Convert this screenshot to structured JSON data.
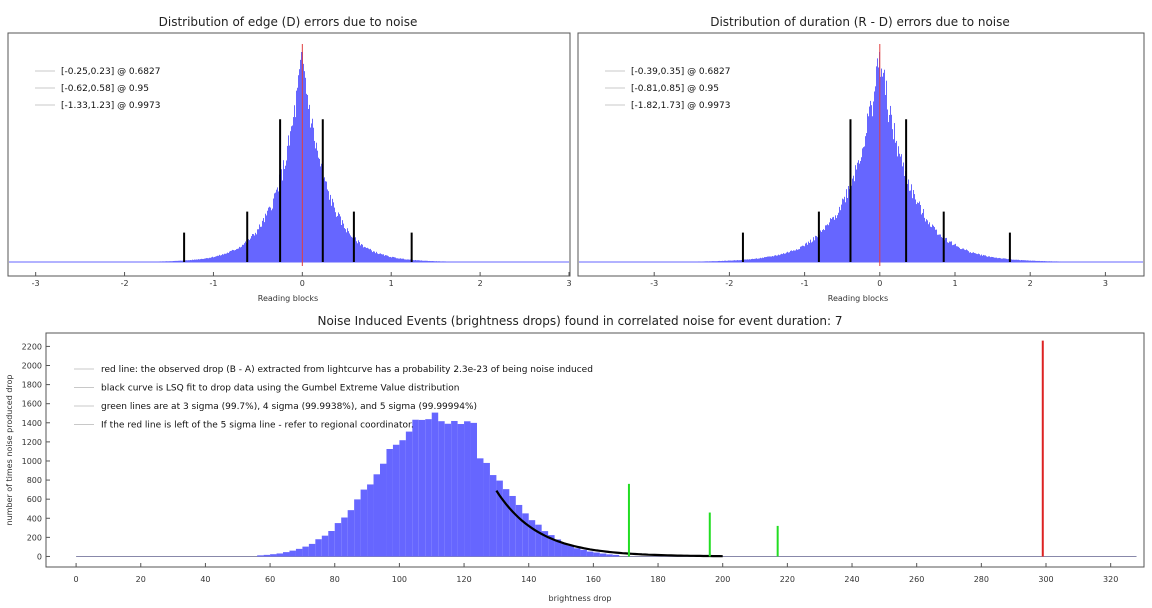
{
  "chart_data": [
    {
      "type": "histogram",
      "title": "Distribution of edge (D) errors due to noise",
      "xlabel": "Reading blocks",
      "ylabel": "",
      "xlim": [
        -3.3,
        3.0
      ],
      "xticks": [
        -3,
        -2,
        -1,
        0,
        1,
        2,
        3
      ],
      "histogram": {
        "center": 0.0,
        "sigma": 0.27,
        "color": "#6666ff"
      },
      "reference_line": {
        "x": 0.0,
        "color": "#e04040"
      },
      "interval_markers": [
        {
          "x": -0.25,
          "rel_height": 0.68
        },
        {
          "x": 0.23,
          "rel_height": 0.68
        },
        {
          "x": -0.62,
          "rel_height": 0.24
        },
        {
          "x": 0.58,
          "rel_height": 0.24
        },
        {
          "x": -1.33,
          "rel_height": 0.14
        },
        {
          "x": 1.23,
          "rel_height": 0.14
        }
      ],
      "legend": [
        "[-0.25,0.23] @ 0.6827",
        "[-0.62,0.58] @ 0.95",
        "[-1.33,1.23] @ 0.9973"
      ],
      "legend_position": "top-left"
    },
    {
      "type": "histogram",
      "title": "Distribution of duration (R - D) errors due to noise",
      "xlabel": "Reading blocks",
      "ylabel": "",
      "xlim": [
        -4.0,
        3.5
      ],
      "xticks": [
        -3,
        -2,
        -1,
        0,
        1,
        2,
        3
      ],
      "histogram": {
        "center": 0.0,
        "sigma": 0.4,
        "color": "#6666ff"
      },
      "reference_line": {
        "x": 0.0,
        "color": "#e04040"
      },
      "interval_markers": [
        {
          "x": -0.39,
          "rel_height": 0.68
        },
        {
          "x": 0.35,
          "rel_height": 0.68
        },
        {
          "x": -0.81,
          "rel_height": 0.24
        },
        {
          "x": 0.85,
          "rel_height": 0.24
        },
        {
          "x": -1.82,
          "rel_height": 0.14
        },
        {
          "x": 1.73,
          "rel_height": 0.14
        }
      ],
      "legend": [
        "[-0.39,0.35] @ 0.6827",
        "[-0.81,0.85] @ 0.95",
        "[-1.82,1.73] @ 0.9973"
      ],
      "legend_position": "top-left"
    },
    {
      "type": "histogram",
      "title": "Noise Induced Events (brightness drops) found in correlated noise for event duration: 7",
      "xlabel": "brightness drop",
      "ylabel": "number of times noise produced drop",
      "xlim": [
        -9,
        330
      ],
      "ylim": [
        -100,
        2330
      ],
      "xticks": [
        0,
        20,
        40,
        60,
        80,
        100,
        120,
        140,
        160,
        180,
        200,
        220,
        240,
        260,
        280,
        300,
        320
      ],
      "yticks": [
        0,
        200,
        400,
        600,
        800,
        1000,
        1200,
        1400,
        1600,
        1800,
        2000,
        2200
      ],
      "histogram": {
        "bin_width": 2,
        "peak_x": 110,
        "peak_y": 1470,
        "range": [
          56,
          168
        ],
        "color": "#6666ff"
      },
      "fit_curve": {
        "name": "Gumbel Extreme Value LSQ fit",
        "x_start": 130,
        "y_start": 690,
        "x_end": 200,
        "color": "#000000"
      },
      "sigma_lines": [
        {
          "label": "3 sigma",
          "x": 171,
          "y": 760,
          "color": "#22dd22"
        },
        {
          "label": "4 sigma",
          "x": 196,
          "y": 460,
          "color": "#22dd22"
        },
        {
          "label": "5 sigma",
          "x": 217,
          "y": 320,
          "color": "#22dd22"
        }
      ],
      "observed_drop": {
        "x": 299,
        "y": 2260,
        "color": "#dd2222"
      },
      "legend": [
        "red line: the observed drop (B - A) extracted from lightcurve has a probability 2.3e-23 of being noise induced",
        "black curve is LSQ fit to drop data using the Gumbel Extreme Value distribution",
        "green lines are at 3 sigma (99.7%), 4 sigma (99.9938%), and 5 sigma (99.99994%)",
        "If the red line is left of the 5 sigma line - refer to regional coordinator."
      ],
      "legend_position": "top-left"
    }
  ]
}
